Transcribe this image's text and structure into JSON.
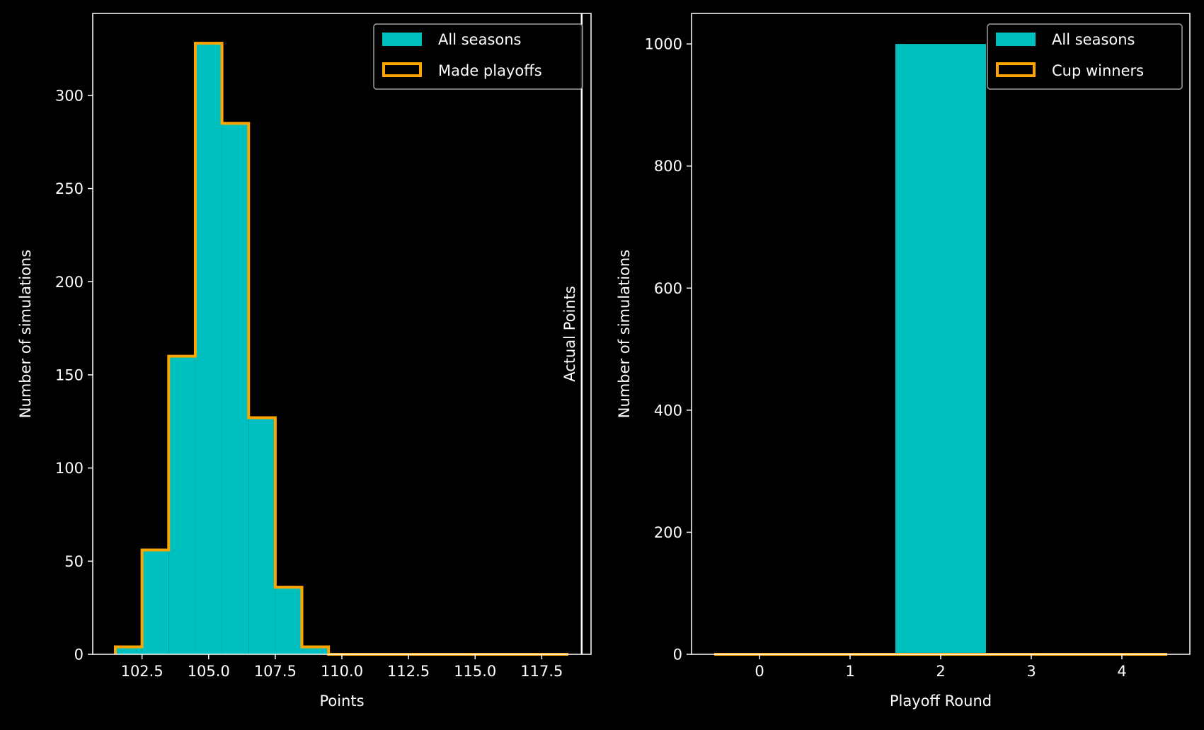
{
  "colors": {
    "background": "#000000",
    "fill": "#00bfbf",
    "outline": "#ffa500",
    "axes": "#ffffff",
    "legend_border": "#a0a0a0"
  },
  "chart_data": [
    {
      "type": "bar",
      "subtype": "histogram",
      "xlabel": "Points",
      "ylabel": "Number of simulations",
      "xlim": [
        100.65,
        119.35
      ],
      "ylim": [
        0,
        344
      ],
      "xticks": [
        "102.5",
        "105.0",
        "107.5",
        "110.0",
        "112.5",
        "115.0",
        "117.5"
      ],
      "yticks": [
        "0",
        "50",
        "100",
        "150",
        "200",
        "250",
        "300"
      ],
      "bin_edges": [
        101.5,
        102.5,
        103.5,
        104.5,
        105.5,
        106.5,
        107.5,
        108.5,
        109.5,
        110.5,
        111.5,
        112.5,
        113.5,
        114.5,
        115.5,
        116.5,
        117.5,
        118.5
      ],
      "series": [
        {
          "name": "All seasons",
          "style": "filled",
          "values": [
            4,
            56,
            160,
            328,
            285,
            127,
            36,
            4,
            0,
            0,
            0,
            0,
            0,
            0,
            0,
            0,
            0
          ]
        },
        {
          "name": "Made playoffs",
          "style": "step-outline",
          "values": [
            4,
            56,
            160,
            328,
            285,
            127,
            36,
            4,
            0,
            0,
            0,
            0,
            0,
            0,
            0,
            0,
            0
          ]
        }
      ],
      "reference_line": {
        "x": 119,
        "label": "Actual Points"
      },
      "legend": "top-right",
      "grid": false
    },
    {
      "type": "bar",
      "subtype": "histogram",
      "xlabel": "Playoff Round",
      "ylabel": "Number of simulations",
      "xlim": [
        -0.75,
        4.75
      ],
      "ylim": [
        0,
        1050
      ],
      "xticks": [
        "0",
        "1",
        "2",
        "3",
        "4"
      ],
      "yticks": [
        "0",
        "200",
        "400",
        "600",
        "800",
        "1000"
      ],
      "bin_edges": [
        -0.5,
        0.5,
        1.5,
        2.5,
        3.5,
        4.5
      ],
      "series": [
        {
          "name": "All seasons",
          "style": "filled",
          "values": [
            0,
            0,
            1000,
            0,
            0
          ]
        },
        {
          "name": "Cup winners",
          "style": "step-outline",
          "values": [
            0,
            0,
            0,
            0,
            0
          ]
        }
      ],
      "legend": "top-right",
      "grid": false
    }
  ]
}
